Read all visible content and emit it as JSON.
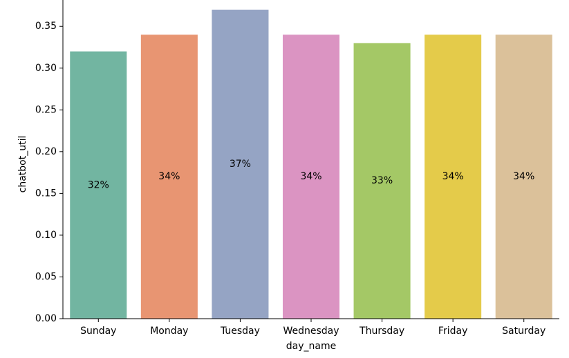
{
  "chart_data": {
    "type": "bar",
    "title": "",
    "xlabel": "day_name",
    "ylabel": "chatbot_util",
    "categories": [
      "Sunday",
      "Monday",
      "Tuesday",
      "Wednesday",
      "Thursday",
      "Friday",
      "Saturday"
    ],
    "values": [
      0.32,
      0.34,
      0.37,
      0.34,
      0.33,
      0.34,
      0.34
    ],
    "data_labels": [
      "32%",
      "34%",
      "37%",
      "34%",
      "33%",
      "34%",
      "34%"
    ],
    "colors": [
      "#72b5a1",
      "#e89572",
      "#95a4c4",
      "#db94c2",
      "#a4c866",
      "#e4cb4a",
      "#dbc19a"
    ],
    "ylim": [
      0,
      0.37
    ],
    "yticks": [
      0.0,
      0.05,
      0.1,
      0.15,
      0.2,
      0.25,
      0.3,
      0.35
    ],
    "ytick_labels": [
      "0.00",
      "0.05",
      "0.10",
      "0.15",
      "0.20",
      "0.25",
      "0.30",
      "0.35"
    ],
    "grid": false,
    "legend": "none"
  }
}
